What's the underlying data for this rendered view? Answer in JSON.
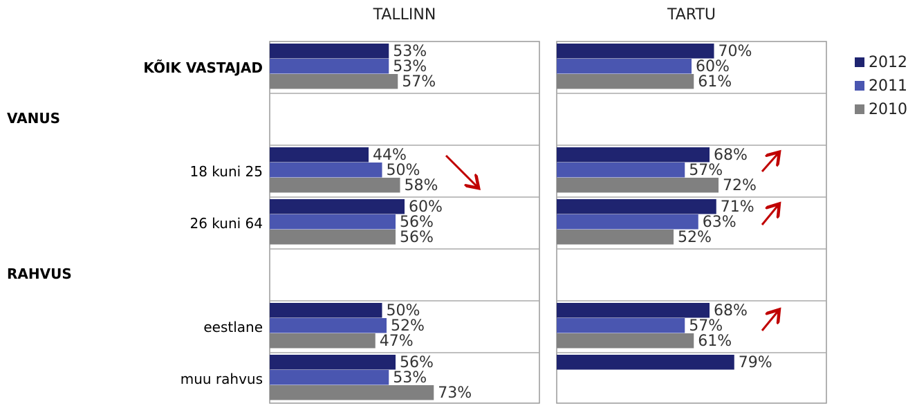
{
  "chart_data": {
    "type": "bar",
    "orientation": "horizontal",
    "categories": [
      "KÕIK VASTAJAD",
      "VANUS",
      "18 kuni 25",
      "26 kuni 64",
      "RAHVUS",
      "eestlane",
      "muu rahvus"
    ],
    "bold_categories": [
      0,
      1,
      4
    ],
    "series": [
      {
        "name": "2012",
        "color": "#1f2470"
      },
      {
        "name": "2011",
        "color": "#4a56b0"
      },
      {
        "name": "2010",
        "color": "#808080"
      }
    ],
    "xlim": [
      0,
      120
    ],
    "legend": "right",
    "panels": [
      {
        "title": "TALLINN",
        "values": [
          [
            53,
            null,
            44,
            60,
            null,
            50,
            56
          ],
          [
            53,
            null,
            50,
            56,
            null,
            52,
            53
          ],
          [
            57,
            null,
            58,
            56,
            null,
            47,
            73
          ]
        ],
        "value_labels": [
          [
            "53%",
            null,
            "44%",
            "60%",
            null,
            "50%",
            "56%"
          ],
          [
            "53%",
            null,
            "50%",
            "56%",
            null,
            "52%",
            "53%"
          ],
          [
            "57%",
            null,
            "58%",
            "56%",
            null,
            "47%",
            "73%"
          ]
        ]
      },
      {
        "title": "TARTU",
        "values": [
          [
            70,
            null,
            68,
            71,
            null,
            68,
            79
          ],
          [
            60,
            null,
            57,
            63,
            null,
            57,
            null
          ],
          [
            61,
            null,
            72,
            52,
            null,
            61,
            null
          ]
        ],
        "value_labels": [
          [
            "70%",
            null,
            "68%",
            "71%",
            null,
            "68%",
            "79%"
          ],
          [
            "60%",
            null,
            "57%",
            "63%",
            null,
            "57%",
            null
          ],
          [
            "61%",
            null,
            "72%",
            "52%",
            null,
            "61%",
            null
          ]
        ]
      }
    ]
  }
}
